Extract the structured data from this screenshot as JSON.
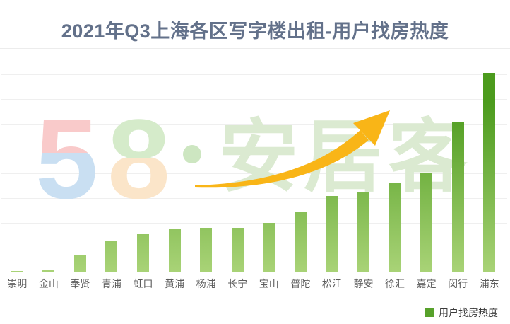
{
  "title": "2021年Q3上海各区写字楼出租-用户找房热度",
  "watermark": {
    "five": "5",
    "eight": "8",
    "dot": "·",
    "brand": "安居客"
  },
  "legend": {
    "label": "用户找房热度"
  },
  "chart_data": {
    "type": "bar",
    "title": "2021年Q3上海各区写字楼出租-用户找房热度",
    "categories": [
      "崇明",
      "金山",
      "奉贤",
      "青浦",
      "虹口",
      "黄浦",
      "杨浦",
      "长宁",
      "宝山",
      "普陀",
      "松江",
      "静安",
      "徐汇",
      "嘉定",
      "闵行",
      "浦东"
    ],
    "series": [
      {
        "name": "用户找房热度",
        "values": [
          0.7,
          1.4,
          8.5,
          15.6,
          19.1,
          21.6,
          22.0,
          22.3,
          24.8,
          30.5,
          38.3,
          40.4,
          44.7,
          49.6,
          75.2,
          100
        ]
      }
    ],
    "value_scale": "relative heat index, max bar (浦东) = 100; y-axis has no tick labels",
    "xlabel": "",
    "ylabel": "",
    "grid": true,
    "gridline_count": 8,
    "legend_position": "bottom-right",
    "bar_gradient": [
      "#a9d377",
      "#4c9b1d"
    ]
  },
  "colors": {
    "title": "#63718a",
    "gridline": "#efefef",
    "axis_label": "#5c5c5c",
    "legend_swatch": "#57a12b",
    "arrow": "#f9b517",
    "watermark_five_top": "#f9caca",
    "watermark_five_bottom": "#c9dff2",
    "watermark_eight_top": "#d5ebca",
    "watermark_eight_bottom": "#fbe5c9",
    "watermark_dot": "#cde6c1",
    "watermark_brand": "#dbead1"
  }
}
